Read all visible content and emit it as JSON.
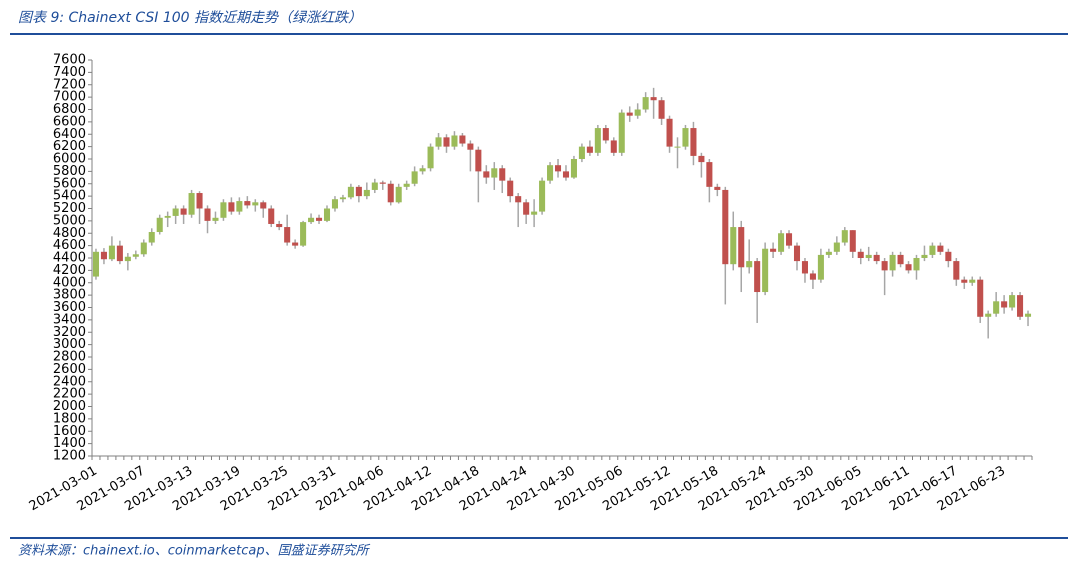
{
  "chart_data": {
    "type": "candlestick",
    "title": "图表 9:  Chainext CSI 100 指数近期走势（绿涨红跌）",
    "source": "资料来源：chainext.io、coinmarketcap、国盛证券研究所",
    "up_color": "#9bbb59",
    "down_color": "#c0504d",
    "wick_color": "#a6a6a6",
    "ylim": [
      1200,
      7600
    ],
    "yticks": [
      1200,
      1400,
      1600,
      1800,
      2000,
      2200,
      2400,
      2600,
      2800,
      3000,
      3200,
      3400,
      3600,
      3800,
      4000,
      4200,
      4400,
      4600,
      4800,
      5000,
      5200,
      5400,
      5600,
      5800,
      6000,
      6200,
      6400,
      6600,
      6800,
      7000,
      7200,
      7400,
      7600
    ],
    "categories": [
      "2021-03-01",
      null,
      null,
      null,
      null,
      null,
      "2021-03-07",
      null,
      null,
      null,
      null,
      null,
      "2021-03-13",
      null,
      null,
      null,
      null,
      null,
      "2021-03-19",
      null,
      null,
      null,
      null,
      null,
      "2021-03-25",
      null,
      null,
      null,
      null,
      null,
      "2021-03-31",
      null,
      null,
      null,
      null,
      null,
      "2021-04-06",
      null,
      null,
      null,
      null,
      null,
      "2021-04-12",
      null,
      null,
      null,
      null,
      null,
      "2021-04-18",
      null,
      null,
      null,
      null,
      null,
      "2021-04-24",
      null,
      null,
      null,
      null,
      null,
      "2021-04-30",
      null,
      null,
      null,
      null,
      null,
      "2021-05-06",
      null,
      null,
      null,
      null,
      null,
      "2021-05-12",
      null,
      null,
      null,
      null,
      null,
      "2021-05-18",
      null,
      null,
      null,
      null,
      null,
      "2021-05-24",
      null,
      null,
      null,
      null,
      null,
      "2021-05-30",
      null,
      null,
      null,
      null,
      null,
      "2021-06-05",
      null,
      null,
      null,
      null,
      null,
      "2021-06-11",
      null,
      null,
      null,
      null,
      null,
      "2021-06-17",
      null,
      null,
      null,
      null,
      null,
      "2021-06-23",
      null,
      null,
      null
    ],
    "open": [
      4100,
      4500,
      4380,
      4600,
      4350,
      4420,
      4460,
      4650,
      4820,
      5050,
      5080,
      5200,
      5100,
      5450,
      5200,
      5000,
      5050,
      5300,
      5150,
      5320,
      5250,
      5300,
      5200,
      4950,
      4900,
      4650,
      4600,
      4980,
      5050,
      5000,
      5200,
      5350,
      5380,
      5550,
      5400,
      5500,
      5620,
      5600,
      5300,
      5550,
      5600,
      5800,
      5850,
      6200,
      6350,
      6200,
      6380,
      6250,
      6150,
      5800,
      5700,
      5850,
      5650,
      5400,
      5300,
      5100,
      5150,
      5650,
      5900,
      5800,
      5700,
      6000,
      6200,
      6100,
      6500,
      6300,
      6100,
      6750,
      6700,
      6800,
      7000,
      6950,
      6650,
      6200,
      6200,
      6500,
      6050,
      5950,
      5550,
      5500,
      4300,
      4900,
      4250,
      4350,
      3850,
      4550,
      4500,
      4800,
      4600,
      4350,
      4150,
      4050,
      4450,
      4500,
      4650,
      4850,
      4500,
      4400,
      4450,
      4350,
      4200,
      4450,
      4300,
      4200,
      4400,
      4450,
      4600,
      4500,
      4350,
      4050,
      4000,
      4050,
      3450,
      3500,
      3700,
      3600,
      3800,
      3450
    ],
    "high": [
      4550,
      4560,
      4750,
      4680,
      4480,
      4520,
      4700,
      4880,
      5100,
      5150,
      5250,
      5250,
      5500,
      5480,
      5250,
      5150,
      5350,
      5380,
      5380,
      5400,
      5350,
      5330,
      5250,
      5000,
      5100,
      4700,
      5000,
      5120,
      5100,
      5250,
      5400,
      5420,
      5600,
      5580,
      5620,
      5680,
      5650,
      5650,
      5600,
      5650,
      5880,
      5900,
      6250,
      6420,
      6400,
      6450,
      6420,
      6300,
      6200,
      5900,
      5950,
      5900,
      5700,
      5450,
      5350,
      5350,
      5700,
      5950,
      6000,
      5900,
      6050,
      6250,
      6300,
      6550,
      6550,
      6350,
      6800,
      6850,
      6900,
      7080,
      7150,
      7000,
      6700,
      6350,
      6550,
      6600,
      6100,
      6000,
      5600,
      5550,
      5150,
      5000,
      4700,
      4400,
      4650,
      4650,
      4850,
      4850,
      4650,
      4400,
      4200,
      4550,
      4550,
      4750,
      4900,
      4850,
      4550,
      4580,
      4500,
      4400,
      4500,
      4500,
      4350,
      4450,
      4600,
      4650,
      4650,
      4550,
      4400,
      4100,
      4100,
      4100,
      3550,
      3850,
      3800,
      3850,
      3850,
      3550
    ],
    "low": [
      4050,
      4300,
      4350,
      4300,
      4200,
      4380,
      4420,
      4600,
      4780,
      4900,
      4950,
      4950,
      5050,
      4950,
      4800,
      4950,
      5000,
      5100,
      5100,
      5200,
      5150,
      5050,
      4900,
      4850,
      4600,
      4550,
      4580,
      4950,
      4950,
      4980,
      5150,
      5300,
      5350,
      5300,
      5350,
      5450,
      5500,
      5250,
      5280,
      5500,
      5560,
      5750,
      5800,
      6150,
      6100,
      6150,
      6200,
      5800,
      5300,
      5600,
      5500,
      5450,
      5300,
      4900,
      4950,
      4900,
      5100,
      5600,
      5700,
      5650,
      5680,
      5950,
      6050,
      6050,
      6250,
      6050,
      6050,
      6600,
      6650,
      6750,
      6650,
      6550,
      6100,
      5850,
      6150,
      5900,
      5700,
      5300,
      5400,
      3650,
      4200,
      3850,
      4150,
      3350,
      3800,
      4400,
      4450,
      4550,
      4200,
      4000,
      3900,
      4000,
      4400,
      4450,
      4600,
      4400,
      4300,
      4350,
      4300,
      3800,
      4100,
      4250,
      4150,
      4050,
      4350,
      4400,
      4450,
      4250,
      3950,
      3900,
      3950,
      3350,
      3100,
      3450,
      3500,
      3550,
      3400,
      3300
    ],
    "close": [
      4500,
      4380,
      4600,
      4350,
      4420,
      4460,
      4650,
      4820,
      5050,
      5080,
      5200,
      5100,
      5450,
      5200,
      5000,
      5050,
      5300,
      5150,
      5320,
      5250,
      5300,
      5200,
      4950,
      4900,
      4650,
      4600,
      4980,
      5050,
      5000,
      5200,
      5350,
      5380,
      5550,
      5400,
      5500,
      5620,
      5600,
      5300,
      5550,
      5600,
      5800,
      5850,
      6200,
      6350,
      6200,
      6380,
      6250,
      6150,
      5800,
      5700,
      5850,
      5650,
      5400,
      5300,
      5100,
      5150,
      5650,
      5900,
      5800,
      5700,
      6000,
      6200,
      6100,
      6500,
      6300,
      6100,
      6750,
      6700,
      6800,
      7000,
      6950,
      6650,
      6200,
      6200,
      6500,
      6050,
      5950,
      5550,
      5500,
      4300,
      4900,
      4250,
      4350,
      3850,
      4550,
      4500,
      4800,
      4600,
      4350,
      4150,
      4050,
      4450,
      4500,
      4650,
      4850,
      4500,
      4400,
      4450,
      4350,
      4200,
      4450,
      4300,
      4200,
      4400,
      4450,
      4600,
      4500,
      4350,
      4050,
      4000,
      4050,
      3450,
      3500,
      3700,
      3600,
      3800,
      3450,
      3500
    ]
  }
}
